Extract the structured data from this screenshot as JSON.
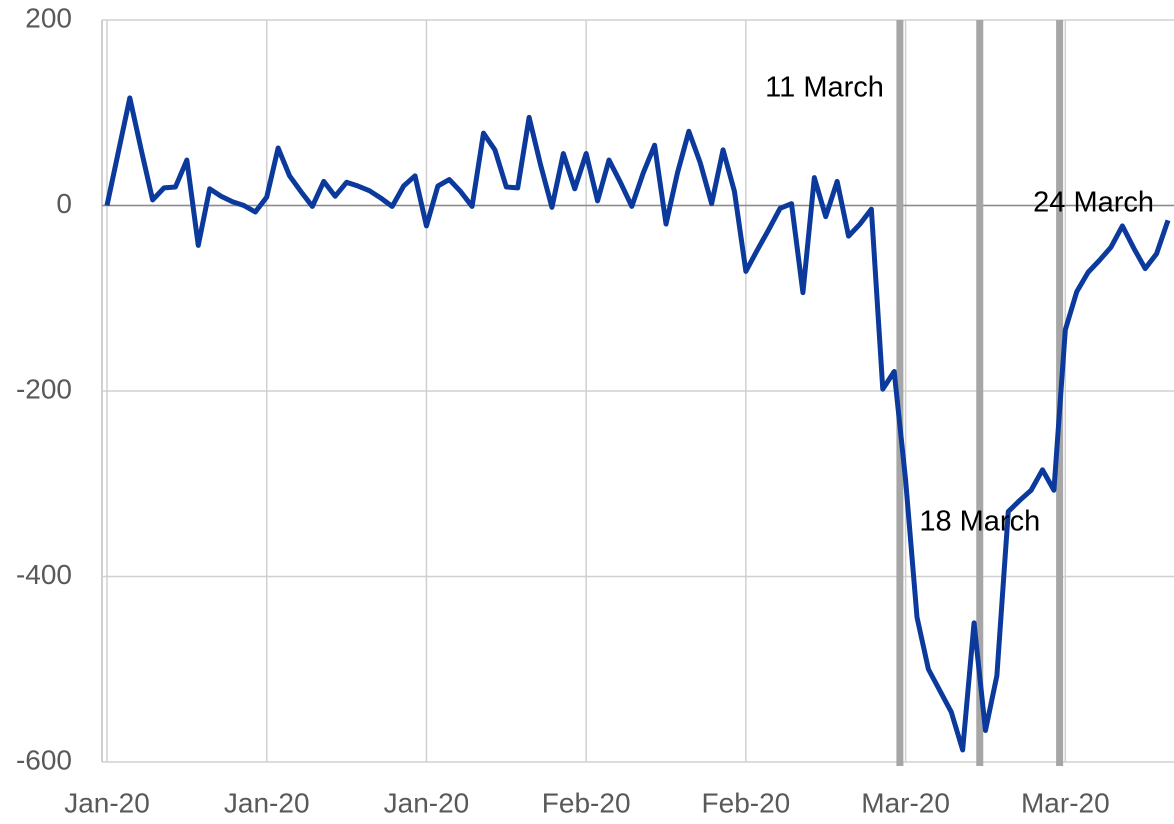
{
  "chart_data": {
    "type": "line",
    "x": [
      0,
      1,
      2,
      3,
      4,
      5,
      6,
      7,
      8,
      9,
      10,
      11,
      12,
      13,
      14,
      15,
      16,
      17,
      18,
      19,
      20,
      21,
      22,
      23,
      24,
      25,
      26,
      27,
      28,
      29,
      30,
      31,
      32,
      33,
      34,
      35,
      36,
      37,
      38,
      39,
      40,
      41,
      42,
      43,
      44,
      45,
      46,
      47,
      48,
      49,
      50,
      51,
      52,
      53,
      54,
      55,
      56,
      57,
      58,
      59,
      60,
      61,
      62,
      63,
      64,
      65,
      66,
      67,
      68,
      69,
      70,
      71,
      72,
      73,
      74,
      75,
      76,
      77,
      78,
      79,
      80,
      81,
      82,
      83,
      84,
      85,
      86,
      87,
      88,
      89,
      90,
      91,
      92,
      93
    ],
    "series": [
      {
        "color": "#0b3a9c",
        "values": [
          0,
          58,
          116,
          60,
          6,
          19,
          20,
          49,
          -43,
          18,
          10,
          4,
          0,
          -7,
          9,
          62,
          32,
          15,
          -1,
          26,
          10,
          25,
          21,
          16,
          8,
          -1,
          21,
          32,
          -22,
          21,
          28,
          15,
          -1,
          78,
          60,
          20,
          19,
          95,
          44,
          -2,
          56,
          18,
          56,
          5,
          49,
          25,
          -1,
          35,
          65,
          -20,
          35,
          80,
          46,
          2,
          60,
          15,
          -71,
          -48,
          -26,
          -3,
          2,
          -94,
          30,
          -12,
          26,
          -33,
          -20,
          -4,
          -198,
          -179,
          -296,
          -444,
          -500,
          -523,
          -546,
          -587,
          -450,
          -566,
          -507,
          -330,
          -318,
          -307,
          -285,
          -307,
          -134,
          -93,
          -72,
          -59,
          -45,
          -22,
          -46,
          -68,
          -52,
          -16
        ]
      }
    ],
    "xlim": [
      0,
      93
    ],
    "xticks": [
      {
        "value": 0,
        "label": "Jan-20"
      },
      {
        "value": 14,
        "label": "Jan-20"
      },
      {
        "value": 28,
        "label": "Jan-20"
      },
      {
        "value": 42,
        "label": "Feb-20"
      },
      {
        "value": 56,
        "label": "Feb-20"
      },
      {
        "value": 70,
        "label": "Mar-20"
      },
      {
        "value": 84,
        "label": "Mar-20"
      }
    ],
    "ylim": [
      -600,
      200
    ],
    "yticks": [
      -600,
      -400,
      -200,
      0,
      200
    ],
    "grid": true,
    "annotations": [
      {
        "x": 69.5,
        "label": "11 March"
      },
      {
        "x": 76.5,
        "label": "18 March"
      },
      {
        "x": 83.5,
        "label": "24 March"
      }
    ]
  }
}
